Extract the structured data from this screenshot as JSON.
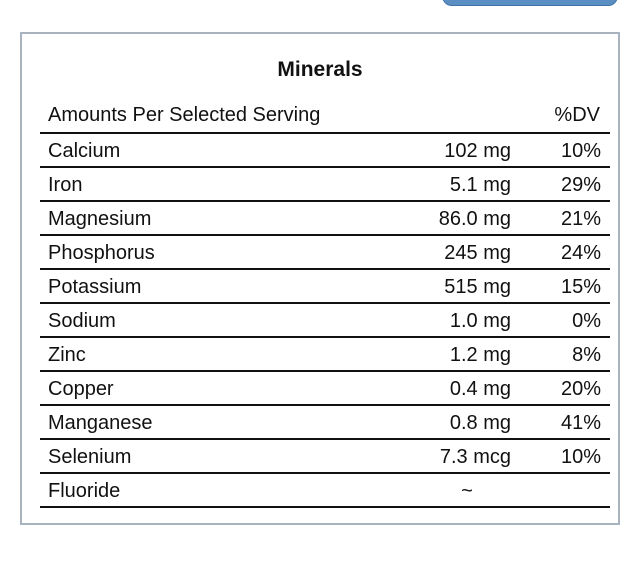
{
  "panel": {
    "title": "Minerals",
    "header": {
      "label": "Amounts Per Selected Serving",
      "dv": "%DV"
    },
    "rows": [
      {
        "name": "Calcium",
        "amount": "102 mg",
        "dv": "10%"
      },
      {
        "name": "Iron",
        "amount": "5.1 mg",
        "dv": "29%"
      },
      {
        "name": "Magnesium",
        "amount": "86.0 mg",
        "dv": "21%"
      },
      {
        "name": "Phosphorus",
        "amount": "245 mg",
        "dv": "24%"
      },
      {
        "name": "Potassium",
        "amount": "515 mg",
        "dv": "15%"
      },
      {
        "name": "Sodium",
        "amount": "1.0 mg",
        "dv": "0%"
      },
      {
        "name": "Zinc",
        "amount": "1.2 mg",
        "dv": "8%"
      },
      {
        "name": "Copper",
        "amount": "0.4 mg",
        "dv": "20%"
      },
      {
        "name": "Manganese",
        "amount": "0.8 mg",
        "dv": "41%"
      },
      {
        "name": "Selenium",
        "amount": "7.3 mcg",
        "dv": "10%"
      },
      {
        "name": "Fluoride",
        "amount": "~",
        "dv": ""
      }
    ]
  }
}
